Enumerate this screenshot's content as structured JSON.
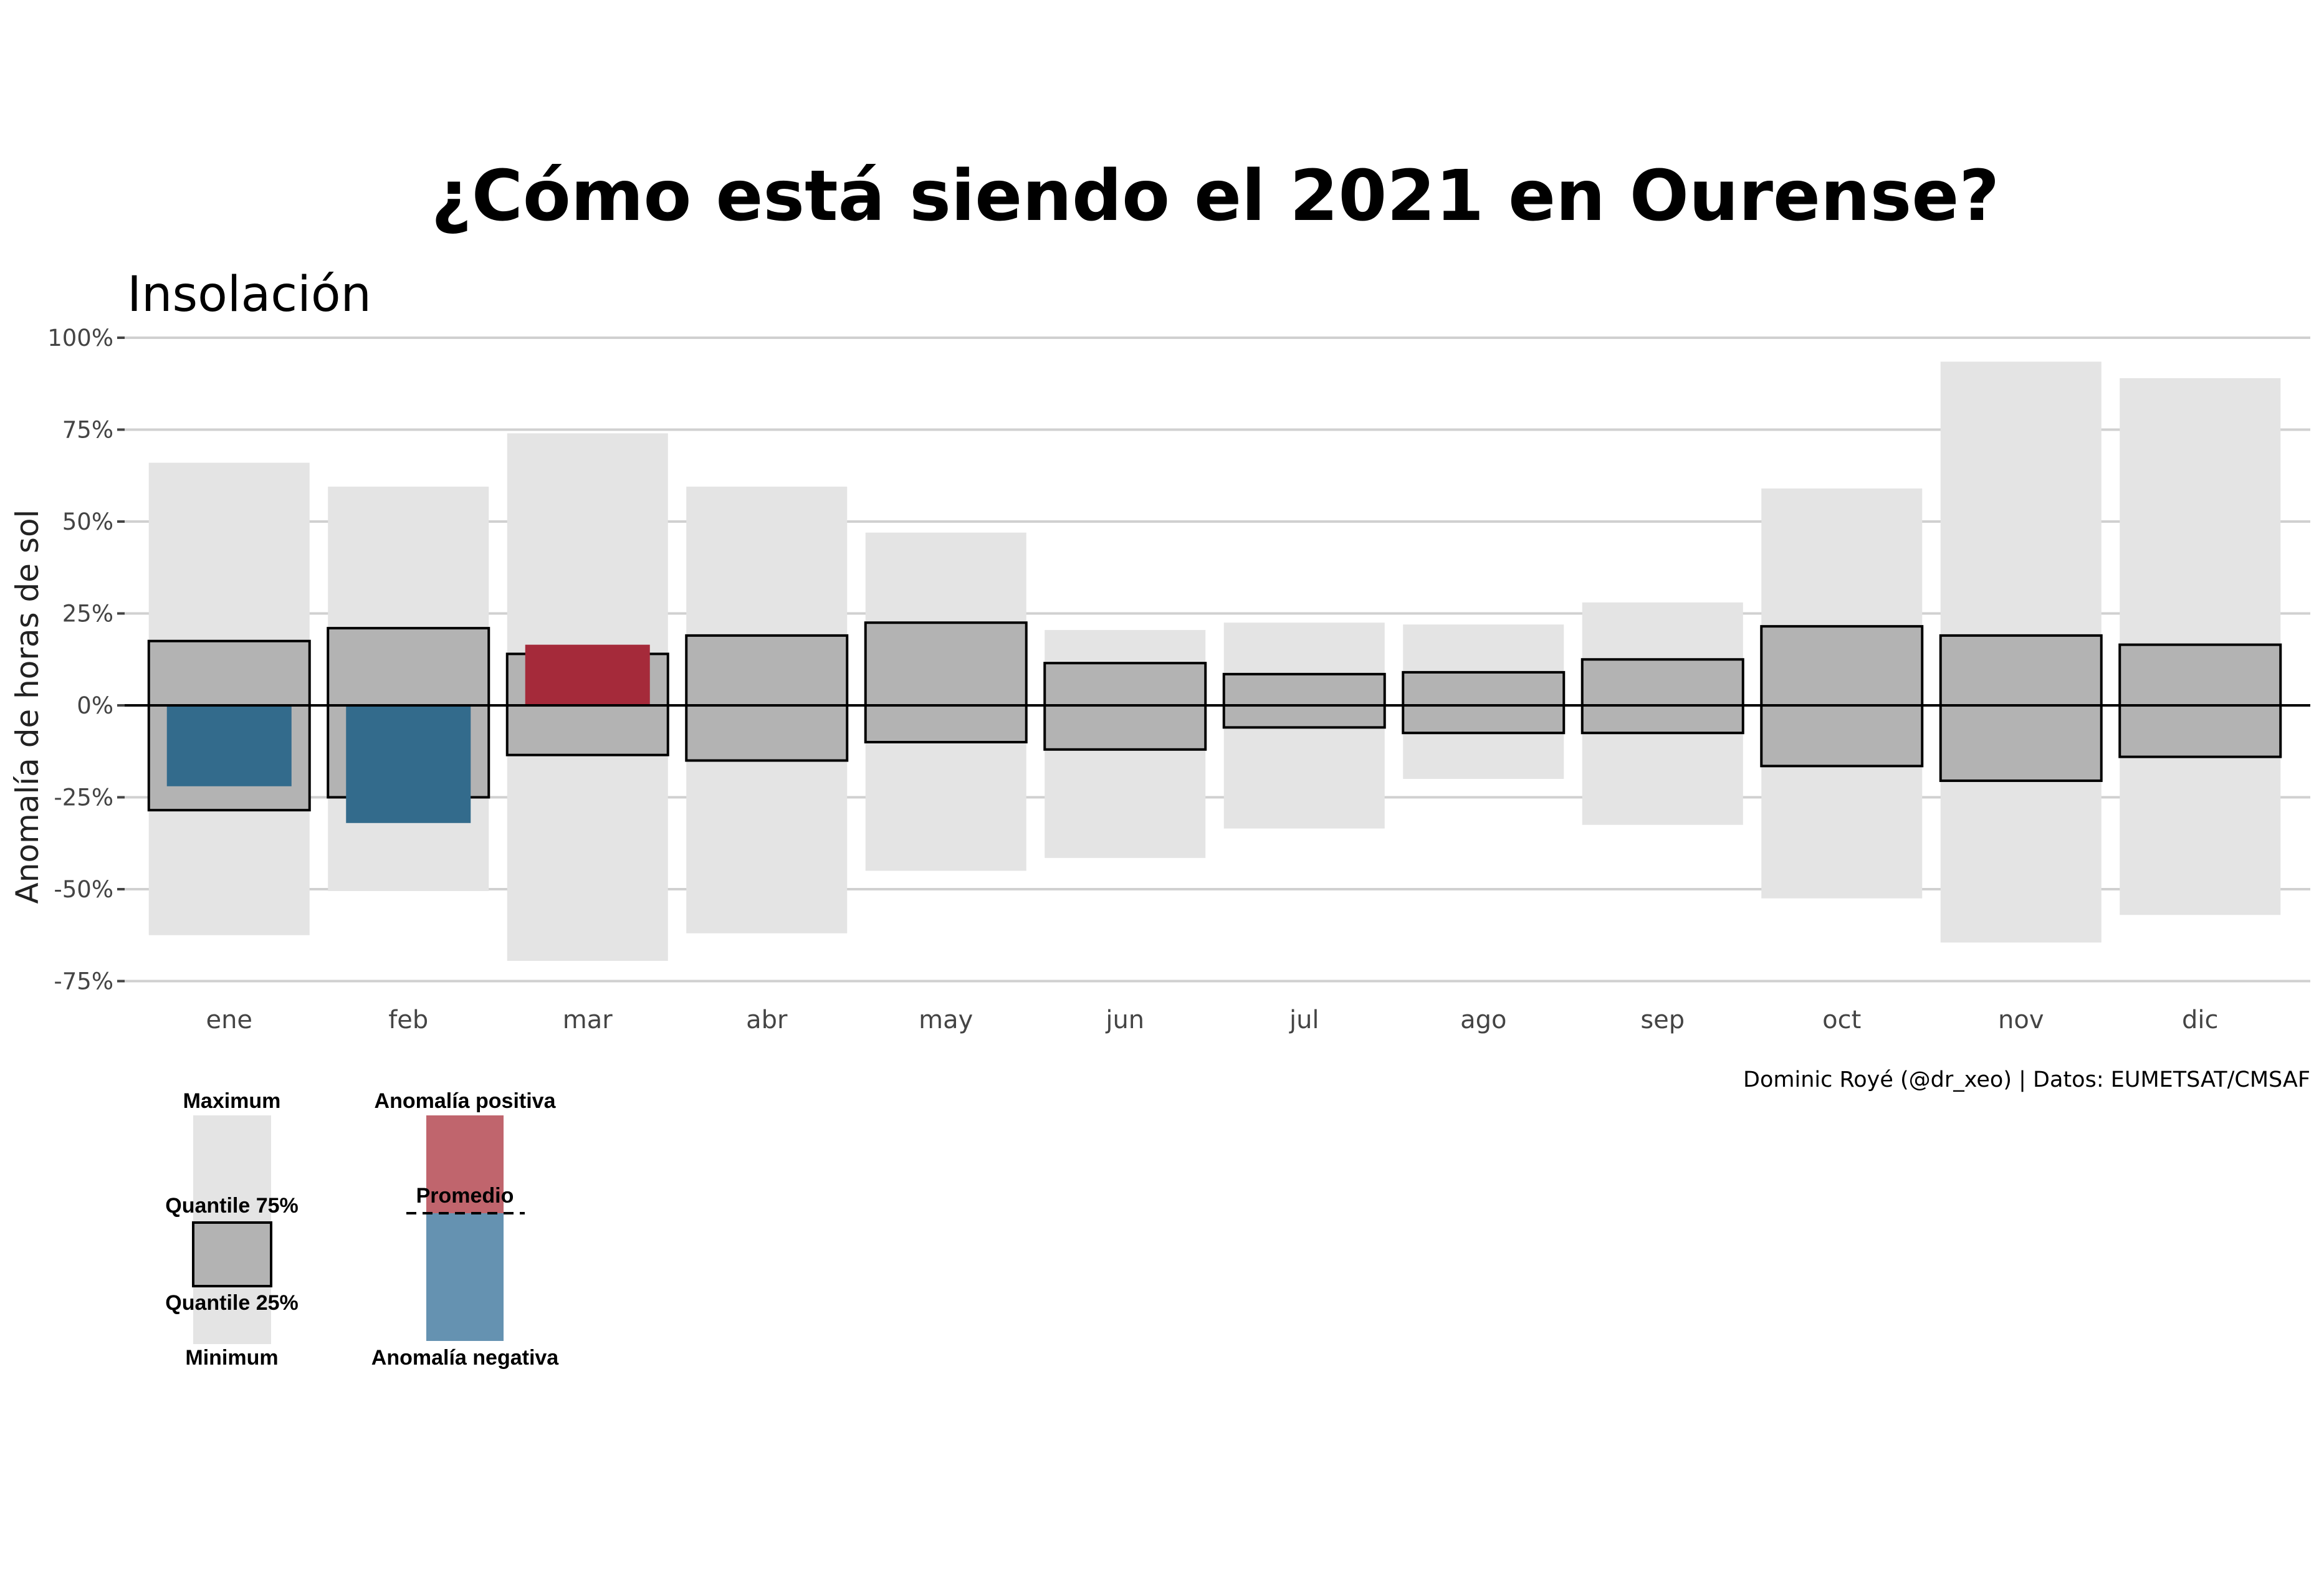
{
  "title": "¿Cómo está siendo el 2021 en Ourense?",
  "subtitle": "Insolación",
  "caption": "Dominic Royé (@dr_xeo) | Datos: EUMETSAT/CMSAF",
  "colors": {
    "range_bar": "#e4e4e4",
    "iqr_bar": "#b3b3b3",
    "positive": "#a52a3a",
    "negative": "#336b8c",
    "positive_legend": "#c0656d",
    "negative_legend": "#6592b1",
    "grid": "#d0d0d0"
  },
  "legend": {
    "maximum": "Maximum",
    "q75": "Quantile 75%",
    "q25": "Quantile 25%",
    "minimum": "Minimum",
    "positive": "Anomalía positiva",
    "average": "Promedio",
    "negative": "Anomalía negativa"
  },
  "chart_data": {
    "type": "bar",
    "ylabel": "Anomalía de horas de sol",
    "xlabel": "",
    "ylim": [
      -75,
      100
    ],
    "yticks": [
      "100%",
      "75%",
      "50%",
      "25%",
      "0%",
      "-25%",
      "-50%",
      "-75%"
    ],
    "ytick_values": [
      100,
      75,
      50,
      25,
      0,
      -25,
      -50,
      -75
    ],
    "categories": [
      "ene",
      "feb",
      "mar",
      "abr",
      "may",
      "jun",
      "jul",
      "ago",
      "sep",
      "oct",
      "nov",
      "dic"
    ],
    "series": [
      {
        "name": "Maximum",
        "values": [
          66,
          59.5,
          74,
          59.5,
          47,
          20.5,
          22.5,
          22,
          28,
          59,
          93.5,
          89
        ]
      },
      {
        "name": "Minimum",
        "values": [
          -62.5,
          -50.5,
          -69.5,
          -62,
          -45,
          -41.5,
          -33.5,
          -20,
          -32.5,
          -52.5,
          -64.5,
          -57
        ]
      },
      {
        "name": "Quantile 75%",
        "values": [
          17.5,
          21,
          14,
          19,
          22.5,
          11.5,
          8.5,
          9,
          12.5,
          21.5,
          19,
          16.5
        ]
      },
      {
        "name": "Quantile 25%",
        "values": [
          -28.5,
          -25,
          -13.5,
          -15,
          -10,
          -12,
          -6,
          -7.5,
          -7.5,
          -16.5,
          -20.5,
          -14
        ]
      },
      {
        "name": "2021",
        "values": [
          -22,
          -32,
          16.5,
          null,
          null,
          null,
          null,
          null,
          null,
          null,
          null,
          null
        ]
      }
    ],
    "grid": true,
    "legend_position": "bottom-left"
  }
}
